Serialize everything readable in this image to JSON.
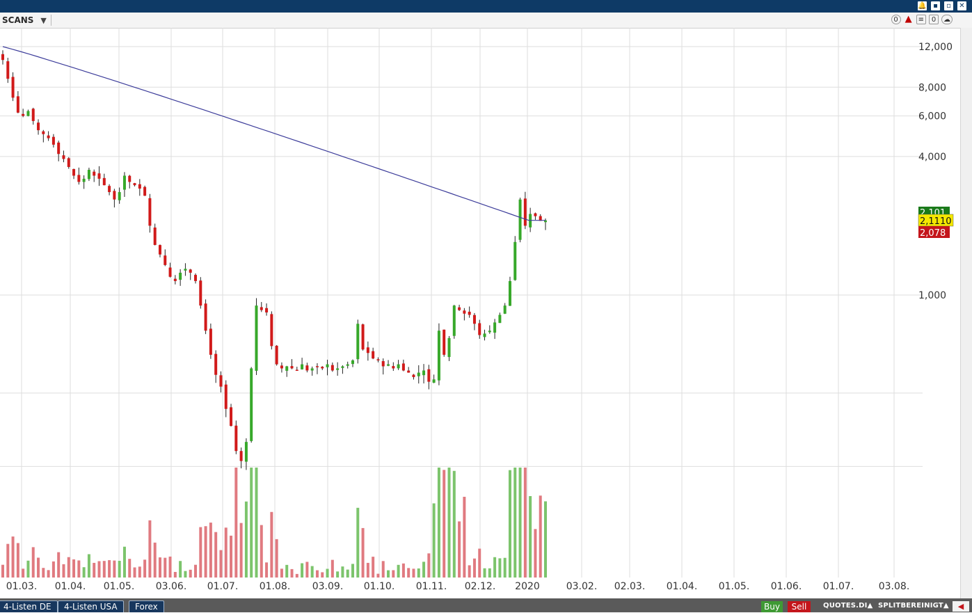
{
  "window": {
    "buttons": [
      {
        "name": "alarm",
        "glyph": "🔔"
      },
      {
        "name": "restore",
        "glyph": "▪"
      },
      {
        "name": "detach",
        "glyph": "▫"
      },
      {
        "name": "close",
        "glyph": "✕"
      }
    ]
  },
  "toolbar": {
    "scans_label": "SCANS",
    "dropdown_glyph": "▼",
    "icons": [
      {
        "name": "info-icon",
        "text": "0"
      },
      {
        "name": "bell-icon",
        "text": "▲"
      },
      {
        "name": "list-add-icon",
        "text": "≡"
      },
      {
        "name": "counter-icon",
        "text": "0"
      },
      {
        "name": "cloud-icon",
        "text": "☁"
      }
    ]
  },
  "chart_data": {
    "type": "candlestick",
    "scale": "log",
    "yaxis_ticks": [
      "12,000",
      "8,000",
      "6,000",
      "4,000",
      "1,000"
    ],
    "xaxis_ticks": [
      "01.03.",
      "01.04.",
      "01.05.",
      "03.06.",
      "01.07.",
      "01.08.",
      "03.09.",
      "01.10.",
      "01.11.",
      "02.12.",
      "2020",
      "03.02.",
      "02.03.",
      "01.04.",
      "01.05.",
      "01.06.",
      "01.07.",
      "03.08."
    ],
    "price_markers": {
      "ask": "2,101",
      "last": "2,1110",
      "bid": "2,078"
    },
    "moving_average_color": "#3c3c9a",
    "up_color": "#37a82a",
    "down_color": "#d11a1a",
    "volume_up_color": "#7cc46c",
    "volume_down_color": "#e07a80",
    "closes": [
      10.5,
      8.7,
      7.2,
      6.2,
      6.0,
      6.3,
      5.7,
      5.2,
      5.0,
      4.8,
      4.5,
      4.1,
      3.9,
      3.6,
      3.3,
      3.1,
      3.2,
      3.5,
      3.3,
      3.2,
      3.0,
      2.8,
      2.6,
      2.8,
      3.3,
      3.1,
      3.0,
      2.9,
      2.7,
      2.0,
      1.65,
      1.5,
      1.35,
      1.2,
      1.15,
      1.25,
      1.3,
      1.25,
      1.15,
      0.9,
      0.7,
      0.55,
      0.45,
      0.4,
      0.32,
      0.27,
      0.21,
      0.19,
      0.23,
      0.48,
      0.9,
      0.86,
      0.84,
      0.6,
      0.5,
      0.48,
      0.49,
      0.48,
      0.47,
      0.5,
      0.47,
      0.48,
      0.49,
      0.48,
      0.5,
      0.47,
      0.48,
      0.49,
      0.5,
      0.52,
      0.75,
      0.58,
      0.56,
      0.53,
      0.52,
      0.49,
      0.5,
      0.48,
      0.5,
      0.47,
      0.46,
      0.44,
      0.46,
      0.47,
      0.42,
      0.43,
      0.7,
      0.55,
      0.65,
      0.9,
      0.86,
      0.83,
      0.82,
      0.75,
      0.67,
      0.68,
      0.7,
      0.76,
      0.82,
      0.9,
      1.15,
      1.7,
      2.6,
      2.0,
      2.25,
      2.2,
      2.1,
      2.11
    ]
  },
  "bottombar": {
    "tabs": [
      "4-Listen DE",
      "4-Listen USA",
      "Forex"
    ],
    "buy_label": "Buy",
    "sell_label": "Sell",
    "quotes_label": "QUOTES.DI▲",
    "split_label": "SPLITBEREINIGT▲",
    "corner_glyph": "◀"
  }
}
